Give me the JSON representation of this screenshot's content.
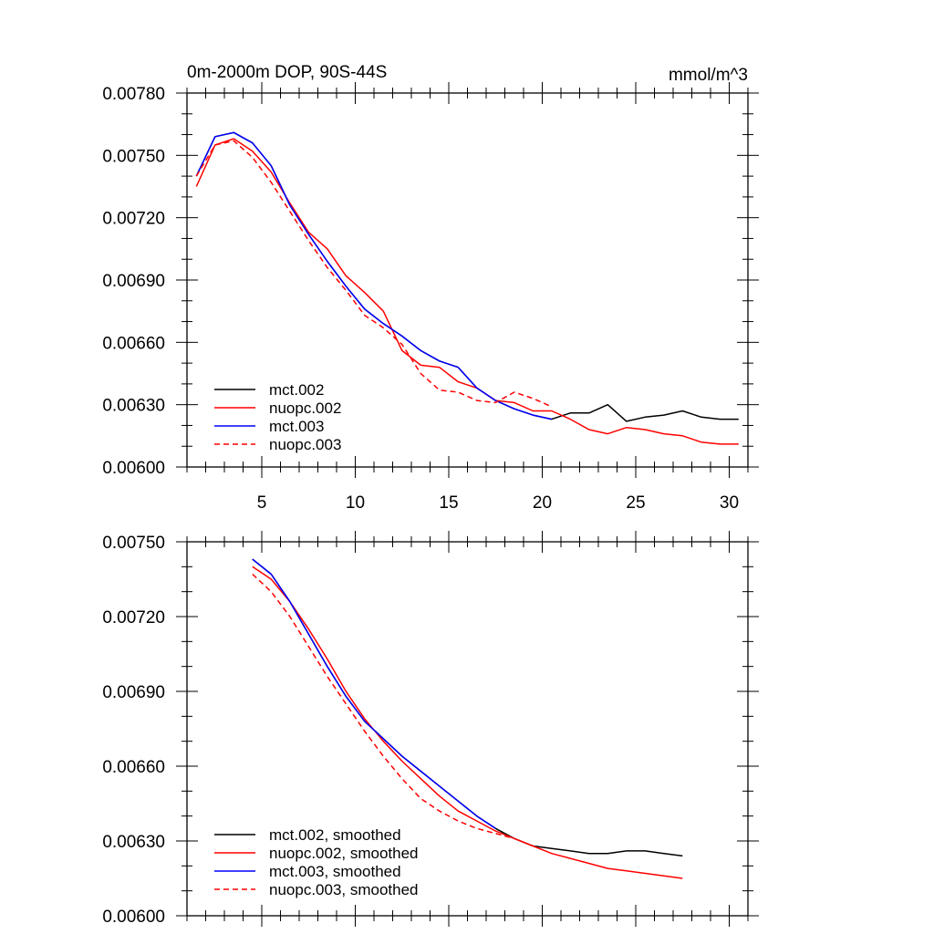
{
  "chart_data": [
    {
      "type": "line",
      "title": "0m-2000m DOP, 90S-44S",
      "units": "mmol/m^3",
      "xlim": [
        1,
        31
      ],
      "ylim": [
        0.006,
        0.0078
      ],
      "xticks": [
        5,
        10,
        15,
        20,
        25,
        30
      ],
      "xtick_labels": [
        "5",
        "10",
        "15",
        "20",
        "25",
        "30"
      ],
      "yticks": [
        0.006,
        0.0063,
        0.0066,
        0.0069,
        0.0072,
        0.0075,
        0.0078
      ],
      "ytick_labels": [
        "0.00600",
        "0.00630",
        "0.00660",
        "0.00690",
        "0.00720",
        "0.00750",
        "0.00780"
      ],
      "legend_position": "bottom-left",
      "series": [
        {
          "name": "mct.002",
          "color": "#000000",
          "dash": "solid",
          "x": [
            1.5,
            2.5,
            3.5,
            4.5,
            5.5,
            6.5,
            7.5,
            8.5,
            9.5,
            10.5,
            11.5,
            12.5,
            13.5,
            14.5,
            15.5,
            16.5,
            17.5,
            18.5,
            19.5,
            20.5,
            21.5,
            22.5,
            23.5,
            24.5,
            25.5,
            26.5,
            27.5,
            28.5,
            29.5,
            30.5
          ],
          "y": [
            0.0074,
            0.00759,
            0.00761,
            0.00756,
            0.00745,
            0.00726,
            0.00712,
            0.00699,
            0.00687,
            0.00676,
            0.00669,
            0.00663,
            0.00656,
            0.00651,
            0.00648,
            0.00638,
            0.00632,
            0.00628,
            0.00625,
            0.00623,
            0.00626,
            0.00626,
            0.0063,
            0.00622,
            0.00624,
            0.00625,
            0.00627,
            0.00624,
            0.00623,
            0.00623
          ]
        },
        {
          "name": "nuopc.002",
          "color": "#ff0000",
          "dash": "solid",
          "x": [
            1.5,
            2.5,
            3.5,
            4.5,
            5.5,
            6.5,
            7.5,
            8.5,
            9.5,
            10.5,
            11.5,
            12.5,
            13.5,
            14.5,
            15.5,
            16.5,
            17.5,
            18.5,
            19.5,
            20.5,
            21.5,
            22.5,
            23.5,
            24.5,
            25.5,
            26.5,
            27.5,
            28.5,
            29.5,
            30.5
          ],
          "y": [
            0.00735,
            0.00755,
            0.00758,
            0.00752,
            0.00742,
            0.00727,
            0.00713,
            0.00705,
            0.00692,
            0.00684,
            0.00675,
            0.00656,
            0.00649,
            0.00648,
            0.00641,
            0.00638,
            0.00632,
            0.00631,
            0.00627,
            0.00627,
            0.00623,
            0.00618,
            0.00616,
            0.00619,
            0.00618,
            0.00616,
            0.00615,
            0.00612,
            0.00611,
            0.00611
          ]
        },
        {
          "name": "mct.003",
          "color": "#0000ff",
          "dash": "solid",
          "x": [
            1.5,
            2.5,
            3.5,
            4.5,
            5.5,
            6.5,
            7.5,
            8.5,
            9.5,
            10.5,
            11.5,
            12.5,
            13.5,
            14.5,
            15.5,
            16.5,
            17.5,
            18.5,
            19.5,
            20.5
          ],
          "y": [
            0.0074,
            0.00759,
            0.00761,
            0.00756,
            0.00745,
            0.00726,
            0.00712,
            0.00699,
            0.00687,
            0.00676,
            0.00669,
            0.00663,
            0.00656,
            0.00651,
            0.00648,
            0.00638,
            0.00632,
            0.00628,
            0.00625,
            0.00623
          ]
        },
        {
          "name": "nuopc.003",
          "color": "#ff0000",
          "dash": "dashed",
          "x": [
            1.5,
            2.5,
            3.5,
            4.5,
            5.5,
            6.5,
            7.5,
            8.5,
            9.5,
            10.5,
            11.5,
            12.5,
            13.5,
            14.5,
            15.5,
            16.5,
            17.5,
            18.5,
            19.5,
            20.5
          ],
          "y": [
            0.0074,
            0.00755,
            0.00757,
            0.00749,
            0.00737,
            0.00723,
            0.00709,
            0.00696,
            0.00685,
            0.00673,
            0.00667,
            0.00659,
            0.00645,
            0.00637,
            0.00636,
            0.00632,
            0.00631,
            0.00636,
            0.00633,
            0.00629
          ]
        }
      ]
    },
    {
      "type": "line",
      "title": "",
      "xlim": [
        1,
        31
      ],
      "ylim": [
        0.006,
        0.0075
      ],
      "xticks": [
        5,
        10,
        15,
        20,
        25,
        30
      ],
      "xtick_labels": [],
      "yticks": [
        0.006,
        0.0063,
        0.0066,
        0.0069,
        0.0072,
        0.0075
      ],
      "ytick_labels": [
        "0.00600",
        "0.00630",
        "0.00660",
        "0.00690",
        "0.00720",
        "0.00750"
      ],
      "legend_position": "bottom-left",
      "series": [
        {
          "name": "mct.002, smoothed",
          "color": "#000000",
          "dash": "solid",
          "x": [
            4.5,
            5.5,
            6.5,
            7.5,
            8.5,
            9.5,
            10.5,
            11.5,
            12.5,
            13.5,
            14.5,
            15.5,
            16.5,
            17.5,
            18.5,
            19.5,
            20.5,
            21.5,
            22.5,
            23.5,
            24.5,
            25.5,
            26.5,
            27.5
          ],
          "y": [
            0.00743,
            0.00737,
            0.00726,
            0.00713,
            0.007,
            0.00688,
            0.00678,
            0.00671,
            0.00664,
            0.00658,
            0.00652,
            0.00646,
            0.0064,
            0.00635,
            0.00631,
            0.00628,
            0.00627,
            0.00626,
            0.00625,
            0.00625,
            0.00626,
            0.00626,
            0.00625,
            0.00624
          ]
        },
        {
          "name": "nuopc.002, smoothed",
          "color": "#ff0000",
          "dash": "solid",
          "x": [
            4.5,
            5.5,
            6.5,
            7.5,
            8.5,
            9.5,
            10.5,
            11.5,
            12.5,
            13.5,
            14.5,
            15.5,
            16.5,
            17.5,
            18.5,
            19.5,
            20.5,
            21.5,
            22.5,
            23.5,
            24.5,
            25.5,
            26.5,
            27.5
          ],
          "y": [
            0.0074,
            0.00735,
            0.00726,
            0.00715,
            0.00703,
            0.0069,
            0.00679,
            0.0067,
            0.00662,
            0.00655,
            0.00648,
            0.00642,
            0.00638,
            0.00634,
            0.00631,
            0.00628,
            0.00625,
            0.00623,
            0.00621,
            0.00619,
            0.00618,
            0.00617,
            0.00616,
            0.00615
          ]
        },
        {
          "name": "mct.003, smoothed",
          "color": "#0000ff",
          "dash": "solid",
          "x": [
            4.5,
            5.5,
            6.5,
            7.5,
            8.5,
            9.5,
            10.5,
            11.5,
            12.5,
            13.5,
            14.5,
            15.5,
            16.5,
            17.5
          ],
          "y": [
            0.00743,
            0.00737,
            0.00726,
            0.00713,
            0.007,
            0.00688,
            0.00678,
            0.00671,
            0.00664,
            0.00658,
            0.00652,
            0.00646,
            0.0064,
            0.00635
          ]
        },
        {
          "name": "nuopc.003, smoothed",
          "color": "#ff0000",
          "dash": "dashed",
          "x": [
            4.5,
            5.5,
            6.5,
            7.5,
            8.5,
            9.5,
            10.5,
            11.5,
            12.5,
            13.5,
            14.5,
            15.5,
            16.5,
            17.5,
            18.5
          ],
          "y": [
            0.00737,
            0.0073,
            0.0072,
            0.00708,
            0.00696,
            0.00685,
            0.00674,
            0.00664,
            0.00655,
            0.00647,
            0.00642,
            0.00638,
            0.00635,
            0.00633,
            0.00631
          ]
        }
      ]
    }
  ]
}
